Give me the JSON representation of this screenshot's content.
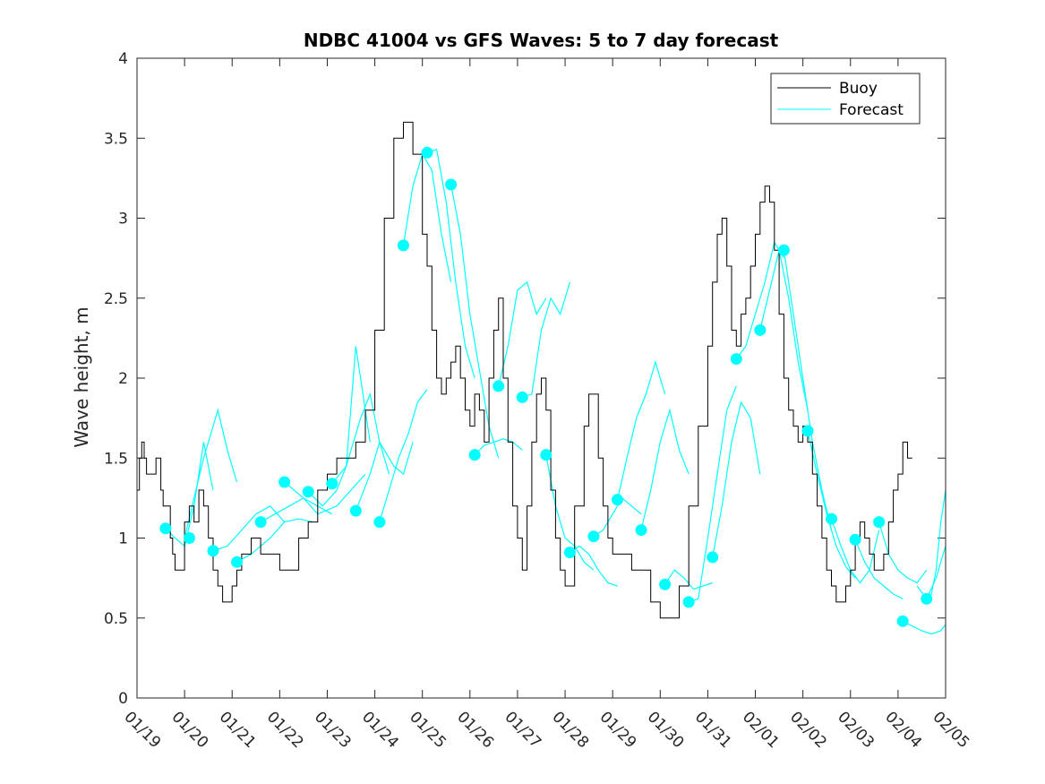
{
  "chart_data": {
    "type": "line",
    "title": "NDBC 41004 vs GFS Waves: 5 to 7 day forecast",
    "xlabel": "",
    "ylabel": "Wave height, m",
    "xlim": [
      0,
      17
    ],
    "ylim": [
      0,
      4
    ],
    "x_tick_labels": [
      "01/19",
      "01/20",
      "01/21",
      "01/22",
      "01/23",
      "01/24",
      "01/25",
      "01/26",
      "01/27",
      "01/28",
      "01/29",
      "01/30",
      "01/31",
      "02/01",
      "02/02",
      "02/03",
      "02/04",
      "02/05"
    ],
    "y_tick_labels": [
      "0",
      "0.5",
      "1",
      "1.5",
      "2",
      "2.5",
      "3",
      "3.5",
      "4"
    ],
    "legend": {
      "position": "top-right",
      "entries": [
        "Buoy",
        "Forecast"
      ]
    },
    "colors": {
      "buoy": "#000000",
      "forecast": "#00ffff",
      "axes": "#262626"
    },
    "buoy": {
      "name": "Buoy",
      "x": [
        0.0,
        0.05,
        0.1,
        0.15,
        0.2,
        0.3,
        0.4,
        0.5,
        0.55,
        0.6,
        0.7,
        0.75,
        0.8,
        0.9,
        1.0,
        1.1,
        1.2,
        1.3,
        1.4,
        1.5,
        1.6,
        1.7,
        1.8,
        1.9,
        2.0,
        2.1,
        2.2,
        2.3,
        2.4,
        2.6,
        2.8,
        3.0,
        3.2,
        3.4,
        3.6,
        3.8,
        4.0,
        4.2,
        4.4,
        4.6,
        4.8,
        5.0,
        5.2,
        5.4,
        5.6,
        5.8,
        6.0,
        6.1,
        6.2,
        6.3,
        6.4,
        6.5,
        6.6,
        6.7,
        6.8,
        6.9,
        7.0,
        7.1,
        7.2,
        7.3,
        7.4,
        7.5,
        7.6,
        7.7,
        7.8,
        7.9,
        8.0,
        8.1,
        8.2,
        8.3,
        8.4,
        8.5,
        8.6,
        8.7,
        8.8,
        8.9,
        9.0,
        9.2,
        9.4,
        9.5,
        9.6,
        9.7,
        9.8,
        9.9,
        10.0,
        10.2,
        10.4,
        10.6,
        10.8,
        11.0,
        11.2,
        11.4,
        11.6,
        11.8,
        12.0,
        12.1,
        12.2,
        12.3,
        12.4,
        12.5,
        12.6,
        12.7,
        12.8,
        12.9,
        13.0,
        13.1,
        13.2,
        13.3,
        13.4,
        13.5,
        13.6,
        13.7,
        13.8,
        13.9,
        14.0,
        14.1,
        14.2,
        14.3,
        14.4,
        14.5,
        14.6,
        14.7,
        14.8,
        14.9,
        15.0,
        15.1,
        15.2,
        15.3,
        15.4,
        15.5,
        15.6,
        15.7,
        15.8,
        15.9,
        16.0,
        16.1,
        16.2,
        16.3
      ],
      "values": [
        1.3,
        1.5,
        1.6,
        1.5,
        1.4,
        1.4,
        1.5,
        1.3,
        1.2,
        1.2,
        1.0,
        0.9,
        0.8,
        0.8,
        1.1,
        1.2,
        1.1,
        1.3,
        1.2,
        1.0,
        0.8,
        0.7,
        0.6,
        0.6,
        0.7,
        0.8,
        0.9,
        0.9,
        1.0,
        0.9,
        0.9,
        0.8,
        0.8,
        1.0,
        1.1,
        1.3,
        1.4,
        1.5,
        1.5,
        1.6,
        1.8,
        2.3,
        3.0,
        3.5,
        3.6,
        3.4,
        2.9,
        2.7,
        2.3,
        2.0,
        1.9,
        2.0,
        2.1,
        2.2,
        2.0,
        1.8,
        1.7,
        1.9,
        1.8,
        1.6,
        2.0,
        2.3,
        2.5,
        2.0,
        1.6,
        1.2,
        1.0,
        0.8,
        1.2,
        1.6,
        1.9,
        2.0,
        1.8,
        1.3,
        1.0,
        0.8,
        0.7,
        1.2,
        1.7,
        1.9,
        1.9,
        1.5,
        1.2,
        1.0,
        0.9,
        0.9,
        0.8,
        0.8,
        0.6,
        0.5,
        0.5,
        0.7,
        1.2,
        1.7,
        2.2,
        2.6,
        2.9,
        3.0,
        2.7,
        2.3,
        2.2,
        2.4,
        2.5,
        2.7,
        2.9,
        3.1,
        3.2,
        3.1,
        2.8,
        2.4,
        2.0,
        1.8,
        1.7,
        1.6,
        1.7,
        1.6,
        1.4,
        1.2,
        1.0,
        0.8,
        0.7,
        0.6,
        0.6,
        0.7,
        0.8,
        1.0,
        1.1,
        1.0,
        0.9,
        0.8,
        0.8,
        0.9,
        1.1,
        1.3,
        1.4,
        1.6,
        1.5,
        1.5
      ]
    },
    "forecast_segments": [
      {
        "x": [
          0.6,
          0.8,
          1.0,
          1.2,
          1.4,
          1.6
        ],
        "values": [
          1.06,
          1.0,
          0.95,
          1.2,
          1.6,
          1.3
        ]
      },
      {
        "x": [
          1.0,
          1.2,
          1.4,
          1.7,
          1.9,
          2.1
        ],
        "values": [
          1.0,
          1.25,
          1.5,
          1.8,
          1.55,
          1.35
        ]
      },
      {
        "x": [
          1.6,
          1.9,
          2.2,
          2.5,
          2.8,
          3.1
        ],
        "values": [
          0.92,
          0.95,
          1.05,
          1.15,
          1.2,
          1.1
        ]
      },
      {
        "x": [
          2.1,
          2.4,
          2.8,
          3.1,
          3.4,
          3.7
        ],
        "values": [
          0.85,
          0.9,
          1.0,
          1.1,
          1.12,
          1.1
        ]
      },
      {
        "x": [
          2.6,
          2.9,
          3.2,
          3.5,
          3.8,
          4.1
        ],
        "values": [
          1.1,
          1.15,
          1.2,
          1.25,
          1.2,
          1.15
        ]
      },
      {
        "x": [
          3.1,
          3.5,
          3.8,
          4.2,
          4.5,
          4.8
        ],
        "values": [
          1.35,
          1.25,
          1.15,
          1.2,
          1.3,
          1.4
        ]
      },
      {
        "x": [
          3.6,
          3.9,
          4.2,
          4.4,
          4.6,
          4.9
        ],
        "values": [
          1.29,
          1.2,
          1.3,
          1.45,
          2.2,
          1.6
        ]
      },
      {
        "x": [
          4.1,
          4.4,
          4.7,
          4.9,
          5.1,
          5.3
        ],
        "values": [
          1.34,
          1.45,
          1.75,
          1.9,
          1.6,
          1.4
        ]
      },
      {
        "x": [
          4.6,
          4.9,
          5.1,
          5.4,
          5.6,
          5.8
        ],
        "values": [
          1.17,
          1.4,
          1.6,
          1.45,
          1.4,
          1.6
        ]
      },
      {
        "x": [
          5.1,
          5.3,
          5.5,
          5.7,
          5.9,
          6.1
        ],
        "values": [
          1.1,
          1.3,
          1.5,
          1.65,
          1.85,
          1.93
        ]
      },
      {
        "x": [
          5.6,
          5.8,
          6.0,
          6.2,
          6.4,
          6.6
        ],
        "values": [
          2.83,
          3.2,
          3.4,
          3.3,
          2.9,
          2.6
        ]
      },
      {
        "x": [
          6.1,
          6.3,
          6.5,
          6.7,
          6.9,
          7.1
        ],
        "values": [
          3.41,
          3.43,
          3.1,
          2.6,
          2.2,
          2.0
        ]
      },
      {
        "x": [
          6.6,
          6.8,
          7.0,
          7.2,
          7.4,
          7.6
        ],
        "values": [
          3.21,
          2.9,
          2.4,
          2.05,
          1.7,
          1.5
        ]
      },
      {
        "x": [
          7.1,
          7.3,
          7.5,
          7.7,
          7.9,
          8.1
        ],
        "values": [
          1.52,
          1.58,
          1.6,
          1.62,
          1.6,
          1.55
        ]
      },
      {
        "x": [
          7.6,
          7.8,
          8.0,
          8.2,
          8.4,
          8.6
        ],
        "values": [
          1.95,
          2.2,
          2.55,
          2.6,
          2.4,
          2.5
        ]
      },
      {
        "x": [
          8.1,
          8.3,
          8.5,
          8.7,
          8.9,
          9.1
        ],
        "values": [
          1.88,
          1.9,
          2.3,
          2.5,
          2.4,
          2.6
        ]
      },
      {
        "x": [
          8.6,
          8.8,
          9.0,
          9.2,
          9.4,
          9.6
        ],
        "values": [
          1.52,
          1.2,
          1.0,
          0.95,
          0.85,
          0.8
        ]
      },
      {
        "x": [
          9.1,
          9.3,
          9.5,
          9.7,
          9.9,
          10.1
        ],
        "values": [
          0.91,
          0.95,
          0.9,
          0.8,
          0.72,
          0.7
        ]
      },
      {
        "x": [
          9.6,
          9.8,
          10.0,
          10.2,
          10.4,
          10.6
        ],
        "values": [
          1.01,
          1.05,
          1.15,
          1.25,
          1.2,
          1.15
        ]
      },
      {
        "x": [
          10.1,
          10.3,
          10.5,
          10.7,
          10.9,
          11.1
        ],
        "values": [
          1.24,
          1.5,
          1.75,
          1.9,
          2.1,
          1.9
        ]
      },
      {
        "x": [
          10.6,
          10.8,
          11.0,
          11.2,
          11.4,
          11.6
        ],
        "values": [
          1.05,
          1.3,
          1.6,
          1.8,
          1.55,
          1.4
        ]
      },
      {
        "x": [
          11.1,
          11.3,
          11.5,
          11.7,
          11.9,
          12.1
        ],
        "values": [
          0.71,
          0.8,
          0.75,
          0.68,
          0.7,
          0.72
        ]
      },
      {
        "x": [
          11.6,
          11.8,
          12.0,
          12.2,
          12.4,
          12.6
        ],
        "values": [
          0.6,
          0.62,
          1.0,
          1.4,
          1.8,
          1.95
        ]
      },
      {
        "x": [
          12.1,
          12.3,
          12.5,
          12.7,
          12.9,
          13.1
        ],
        "values": [
          0.88,
          1.2,
          1.6,
          1.85,
          1.75,
          1.4
        ]
      },
      {
        "x": [
          12.6,
          12.8,
          13.0,
          13.2,
          13.4,
          13.6
        ],
        "values": [
          2.12,
          2.2,
          2.4,
          2.6,
          2.85,
          2.75
        ]
      },
      {
        "x": [
          13.1,
          13.3,
          13.5,
          13.7,
          13.9,
          14.1
        ],
        "values": [
          2.3,
          2.55,
          2.8,
          2.5,
          2.1,
          1.8
        ]
      },
      {
        "x": [
          13.6,
          13.8,
          14.0,
          14.2,
          14.4,
          14.6
        ],
        "values": [
          2.8,
          2.4,
          2.0,
          1.6,
          1.3,
          1.05
        ]
      },
      {
        "x": [
          14.1,
          14.3,
          14.5,
          14.7,
          14.9,
          15.1
        ],
        "values": [
          1.67,
          1.4,
          1.15,
          0.95,
          0.82,
          0.75
        ]
      },
      {
        "x": [
          14.6,
          14.8,
          15.0,
          15.2,
          15.4,
          15.6
        ],
        "values": [
          1.12,
          0.95,
          0.8,
          0.72,
          0.8,
          1.05
        ]
      },
      {
        "x": [
          15.1,
          15.3,
          15.5,
          15.7,
          15.9,
          16.1
        ],
        "values": [
          0.99,
          0.85,
          0.75,
          0.7,
          0.65,
          0.62
        ]
      },
      {
        "x": [
          15.6,
          15.8,
          16.0,
          16.2,
          16.4,
          16.6
        ],
        "values": [
          1.1,
          0.9,
          0.8,
          0.75,
          0.72,
          0.8
        ]
      },
      {
        "x": [
          16.1,
          16.3,
          16.5,
          16.7,
          16.9,
          17.0
        ],
        "values": [
          0.48,
          0.45,
          0.42,
          0.4,
          0.42,
          0.46
        ]
      },
      {
        "x": [
          16.6,
          16.7,
          16.8,
          16.9,
          17.0
        ],
        "values": [
          0.62,
          0.65,
          0.8,
          1.1,
          1.3
        ]
      },
      {
        "x": [
          16.4,
          16.6,
          16.8,
          17.0
        ],
        "values": [
          0.7,
          0.62,
          0.75,
          0.95
        ]
      }
    ],
    "forecast_markers": {
      "x": [
        0.6,
        1.1,
        1.6,
        2.1,
        2.6,
        3.1,
        3.6,
        4.1,
        4.6,
        5.1,
        5.6,
        6.1,
        6.6,
        7.1,
        7.6,
        8.1,
        8.6,
        9.1,
        9.6,
        10.1,
        10.6,
        11.1,
        11.6,
        12.1,
        12.6,
        13.1,
        13.6,
        14.1,
        14.6,
        15.1,
        15.6,
        16.1,
        16.6
      ],
      "values": [
        1.06,
        1.0,
        0.92,
        0.85,
        1.1,
        1.35,
        1.29,
        1.34,
        1.17,
        1.1,
        2.83,
        3.41,
        3.21,
        1.52,
        1.95,
        1.88,
        1.52,
        0.91,
        1.01,
        1.24,
        1.05,
        0.71,
        0.6,
        0.88,
        2.12,
        2.3,
        2.8,
        1.67,
        1.12,
        0.99,
        1.1,
        0.48,
        0.62
      ]
    }
  }
}
